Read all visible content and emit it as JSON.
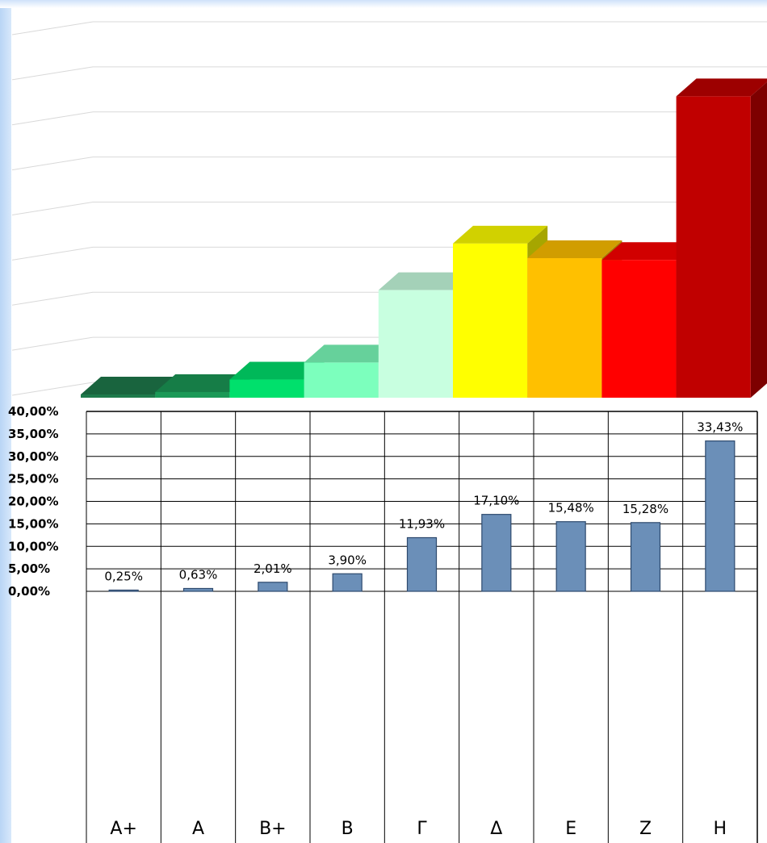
{
  "chart_data": [
    {
      "type": "bar",
      "style": "3d-column",
      "categories": [
        "A+",
        "A",
        "B+",
        "B",
        "Γ",
        "Δ",
        "E",
        "Z",
        "H"
      ],
      "values": [
        0.25,
        0.63,
        2.01,
        3.9,
        11.93,
        17.1,
        15.48,
        15.28,
        33.43
      ],
      "colors": [
        "#1e7a4b",
        "#1b9957",
        "#00e06c",
        "#7cffbd",
        "#c8ffe0",
        "#ffff00",
        "#ffc000",
        "#ff0000",
        "#c00000"
      ],
      "ylim": [
        0,
        40
      ],
      "grid": true
    },
    {
      "type": "bar",
      "categories": [
        "A+",
        "A",
        "B+",
        "B",
        "Γ",
        "Δ",
        "E",
        "Z",
        "H"
      ],
      "values": [
        0.25,
        0.63,
        2.01,
        3.9,
        11.93,
        17.1,
        15.48,
        15.28,
        33.43
      ],
      "data_labels": [
        "0,25%",
        "0,63%",
        "2,01%",
        "3,90%",
        "11,93%",
        "17,10%",
        "15,48%",
        "15,28%",
        "33,43%"
      ],
      "y_ticks": [
        "0,00%",
        "5,00%",
        "10,00%",
        "15,00%",
        "20,00%",
        "25,00%",
        "30,00%",
        "35,00%",
        "40,00%"
      ],
      "ylim": [
        0,
        40
      ],
      "grid": true,
      "bar_color": "#6b8fb8"
    }
  ]
}
